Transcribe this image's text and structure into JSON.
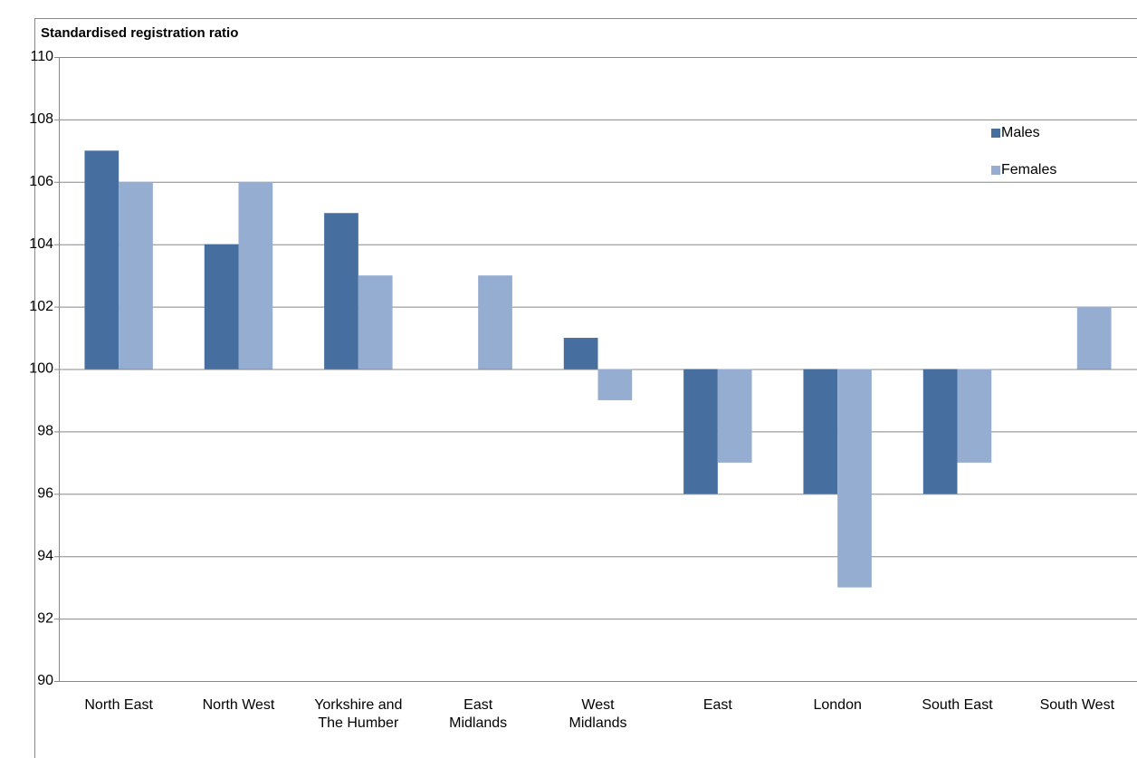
{
  "chart_data": {
    "type": "bar",
    "y_label": "Standardised registration ratio",
    "categories": [
      [
        "North East"
      ],
      [
        "North West"
      ],
      [
        "Yorkshire and",
        "The Humber"
      ],
      [
        "East",
        "Midlands"
      ],
      [
        "West",
        "Midlands"
      ],
      [
        "East"
      ],
      [
        "London"
      ],
      [
        "South East"
      ],
      [
        "South West"
      ]
    ],
    "series": [
      {
        "name": "Males",
        "color": "#466e9f",
        "values": [
          107,
          104,
          105,
          100,
          101,
          96,
          96,
          96,
          100
        ]
      },
      {
        "name": "Females",
        "color": "#95add1",
        "values": [
          106,
          106,
          103,
          103,
          99,
          97,
          93,
          97,
          102
        ]
      }
    ],
    "bar_base": 100,
    "ylim": [
      90,
      110
    ],
    "yticks": [
      90,
      92,
      94,
      96,
      98,
      100,
      102,
      104,
      106,
      108,
      110
    ],
    "grid": true,
    "legend": "top-right"
  }
}
